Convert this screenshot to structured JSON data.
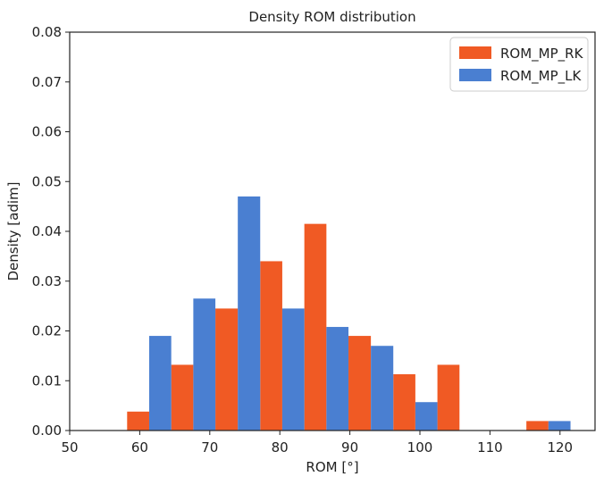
{
  "chart_data": {
    "type": "bar",
    "title": "Density ROM distribution",
    "xlabel": "ROM [°]",
    "ylabel": "Density [adim]",
    "xlim": [
      50,
      125
    ],
    "ylim": [
      0,
      0.08
    ],
    "xticks": [
      50,
      60,
      70,
      80,
      90,
      100,
      110,
      120
    ],
    "xtick_labels": [
      "50",
      "60",
      "70",
      "80",
      "90",
      "100",
      "110",
      "120"
    ],
    "yticks": [
      0,
      0.01,
      0.02,
      0.03,
      0.04,
      0.05,
      0.06,
      0.07,
      0.08
    ],
    "ytick_labels": [
      "0.00",
      "0.01",
      "0.02",
      "0.03",
      "0.04",
      "0.05",
      "0.06",
      "0.07",
      "0.08"
    ],
    "bin_edges": [
      58.2,
      64.5,
      70.8,
      77.2,
      83.5,
      89.8,
      96.2,
      102.5,
      108.8,
      115.2,
      121.5
    ],
    "legend_position": "top-right",
    "series": [
      {
        "name": "ROM_MP_RK",
        "color": "#f05a24",
        "values": [
          0.0038,
          0.0132,
          0.0245,
          0.034,
          0.0415,
          0.019,
          0.0113,
          0.0132,
          0,
          0.0019
        ]
      },
      {
        "name": "ROM_MP_LK",
        "color": "#4a7fd1",
        "values": [
          0.019,
          0.0265,
          0.047,
          0.0245,
          0.0208,
          0.017,
          0.0057,
          0,
          0,
          0.0019
        ]
      }
    ]
  }
}
